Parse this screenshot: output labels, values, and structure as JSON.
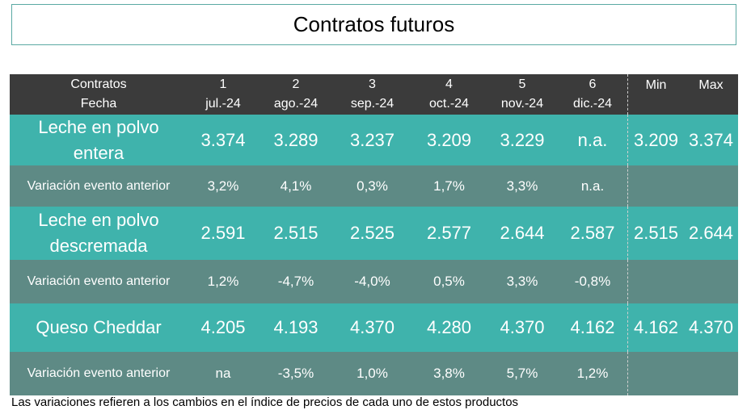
{
  "title": "Contratos futuros",
  "header": {
    "label_line1": "Contratos",
    "label_line2": "Fecha",
    "columns": [
      {
        "num": "1",
        "date": "jul.-24"
      },
      {
        "num": "2",
        "date": "ago.-24"
      },
      {
        "num": "3",
        "date": "sep.-24"
      },
      {
        "num": "4",
        "date": "oct.-24"
      },
      {
        "num": "5",
        "date": "nov.-24"
      },
      {
        "num": "6",
        "date": "dic.-24"
      }
    ],
    "min_label": "Min",
    "max_label": "Max"
  },
  "rows": [
    {
      "label_line1": "Leche en polvo",
      "label_line2": "entera",
      "values": [
        "3.374",
        "3.289",
        "3.237",
        "3.209",
        "3.229",
        "n.a."
      ],
      "min": "3.209",
      "max": "3.374"
    },
    {
      "label": "Variación evento anterior",
      "values": [
        "3,2%",
        "4,1%",
        "0,3%",
        "1,7%",
        "3,3%",
        "n.a."
      ]
    },
    {
      "label_line1": "Leche en polvo",
      "label_line2": "descremada",
      "values": [
        "2.591",
        "2.515",
        "2.525",
        "2.577",
        "2.644",
        "2.587"
      ],
      "min": "2.515",
      "max": "2.644"
    },
    {
      "label": "Variación evento anterior",
      "values": [
        "1,2%",
        "-4,7%",
        "-4,0%",
        "0,5%",
        "3,3%",
        "-0,8%"
      ]
    },
    {
      "label_line1": "Queso Cheddar",
      "label_line2": "",
      "values": [
        "4.205",
        "4.193",
        "4.370",
        "4.280",
        "4.370",
        "4.162"
      ],
      "min": "4.162",
      "max": "4.370"
    },
    {
      "label": "Variación evento anterior",
      "values": [
        "na",
        "-3,5%",
        "1,0%",
        "3,8%",
        "5,7%",
        "1,2%"
      ]
    }
  ],
  "footnote": "Las variaciones refieren a los cambios en el índice de precios de cada uno de estos productos",
  "colors": {
    "header_bg": "#3b3b3b",
    "product_row_bg": "#3fb3ac",
    "variation_row_bg": "#5e8a85",
    "title_border": "#5aa9a3"
  }
}
